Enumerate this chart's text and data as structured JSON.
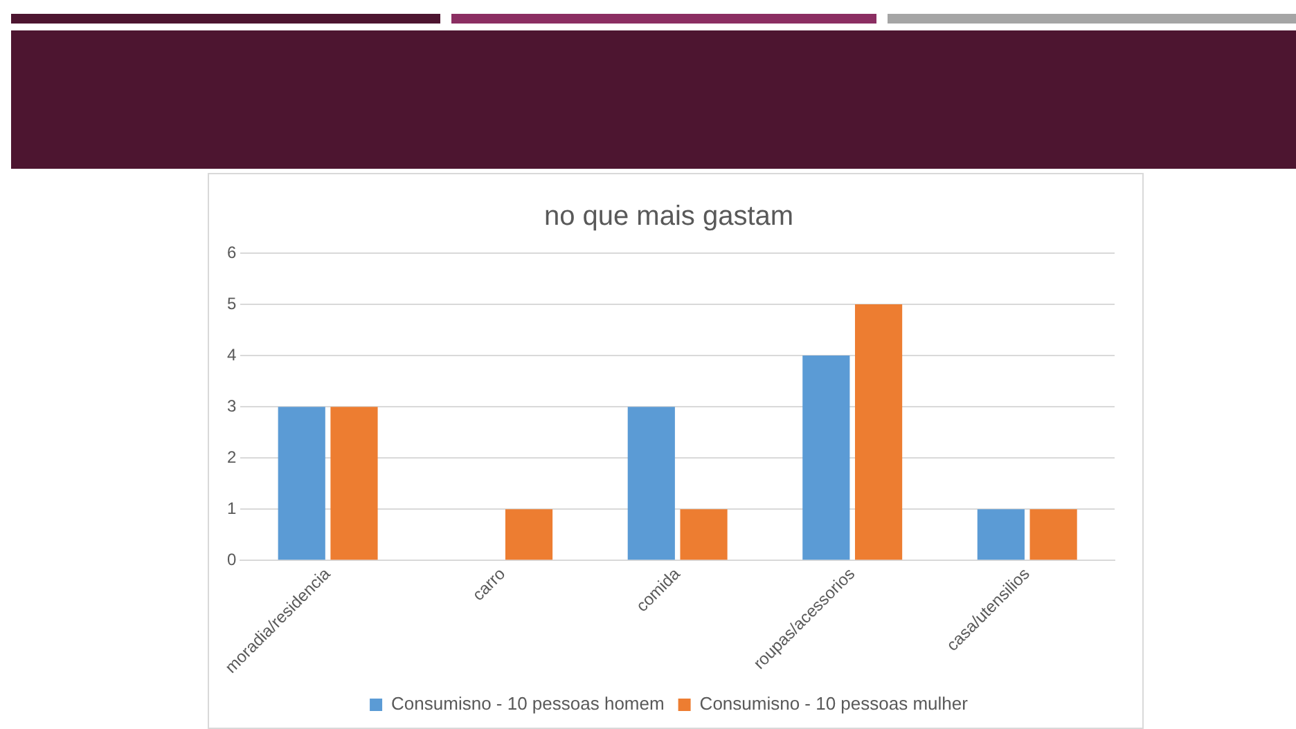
{
  "chart_data": {
    "type": "bar",
    "title": "no que mais gastam",
    "categories": [
      "moradia/residencia",
      "carro",
      "comida",
      "roupas/acessorios",
      "casa/utensilios"
    ],
    "series": [
      {
        "name": "Consumisno - 10 pessoas homem",
        "color": "#5b9bd5",
        "values": [
          3,
          0,
          3,
          4,
          1
        ]
      },
      {
        "name": "Consumisno - 10 pessoas mulher",
        "color": "#ed7d31",
        "values": [
          3,
          1,
          1,
          5,
          1
        ]
      }
    ],
    "ylim": [
      0,
      6
    ],
    "yticks": [
      0,
      1,
      2,
      3,
      4,
      5,
      6
    ],
    "grid": "y",
    "legend": "bottom"
  }
}
